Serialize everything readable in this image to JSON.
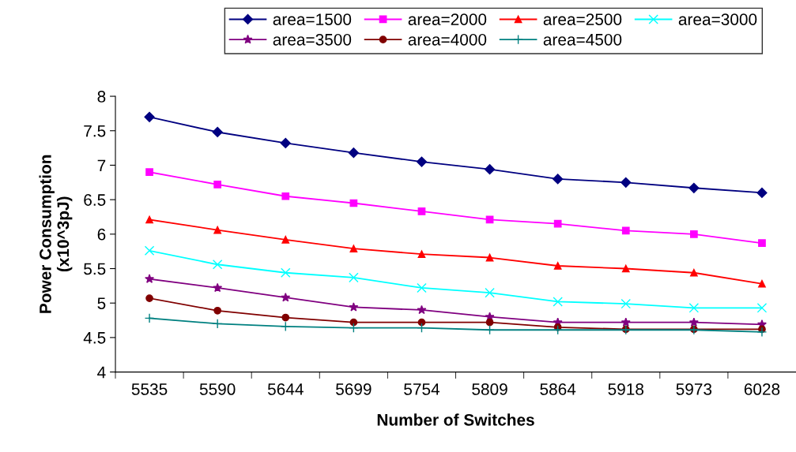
{
  "chart_data": {
    "type": "line",
    "xlabel": "Number of Switches",
    "ylabel": "Power Consumption\n(x10^3pJ)",
    "categories": [
      "5535",
      "5590",
      "5644",
      "5699",
      "5754",
      "5809",
      "5864",
      "5918",
      "5973",
      "6028"
    ],
    "series": [
      {
        "name": "area=1500",
        "color": "#000080",
        "marker": "diamond",
        "values": [
          7.7,
          7.48,
          7.32,
          7.18,
          7.05,
          6.94,
          6.8,
          6.75,
          6.67,
          6.6
        ]
      },
      {
        "name": "area=2000",
        "color": "#ff00ff",
        "marker": "square",
        "values": [
          6.9,
          6.72,
          6.55,
          6.45,
          6.33,
          6.21,
          6.15,
          6.05,
          6.0,
          5.87
        ]
      },
      {
        "name": "area=2500",
        "color": "#ff0000",
        "marker": "triangle",
        "values": [
          6.21,
          6.06,
          5.92,
          5.79,
          5.71,
          5.66,
          5.54,
          5.5,
          5.44,
          5.28
        ]
      },
      {
        "name": "area=3000",
        "color": "#00ffff",
        "marker": "cross",
        "values": [
          5.76,
          5.56,
          5.44,
          5.37,
          5.22,
          5.15,
          5.02,
          4.99,
          4.93,
          4.93
        ]
      },
      {
        "name": "area=3500",
        "color": "#800080",
        "marker": "star",
        "values": [
          5.35,
          5.22,
          5.08,
          4.94,
          4.9,
          4.8,
          4.72,
          4.72,
          4.72,
          4.69
        ]
      },
      {
        "name": "area=4000",
        "color": "#800000",
        "marker": "circle",
        "values": [
          5.07,
          4.89,
          4.79,
          4.72,
          4.72,
          4.72,
          4.65,
          4.62,
          4.62,
          4.62
        ]
      },
      {
        "name": "area=4500",
        "color": "#008080",
        "marker": "plus",
        "values": [
          4.78,
          4.7,
          4.66,
          4.64,
          4.64,
          4.61,
          4.61,
          4.61,
          4.61,
          4.58
        ]
      }
    ],
    "ylim": [
      4,
      8
    ],
    "yticks": [
      4,
      4.5,
      5,
      5.5,
      6,
      6.5,
      7,
      7.5,
      8
    ],
    "grid": false,
    "legend": "top",
    "line_style": "solid"
  }
}
